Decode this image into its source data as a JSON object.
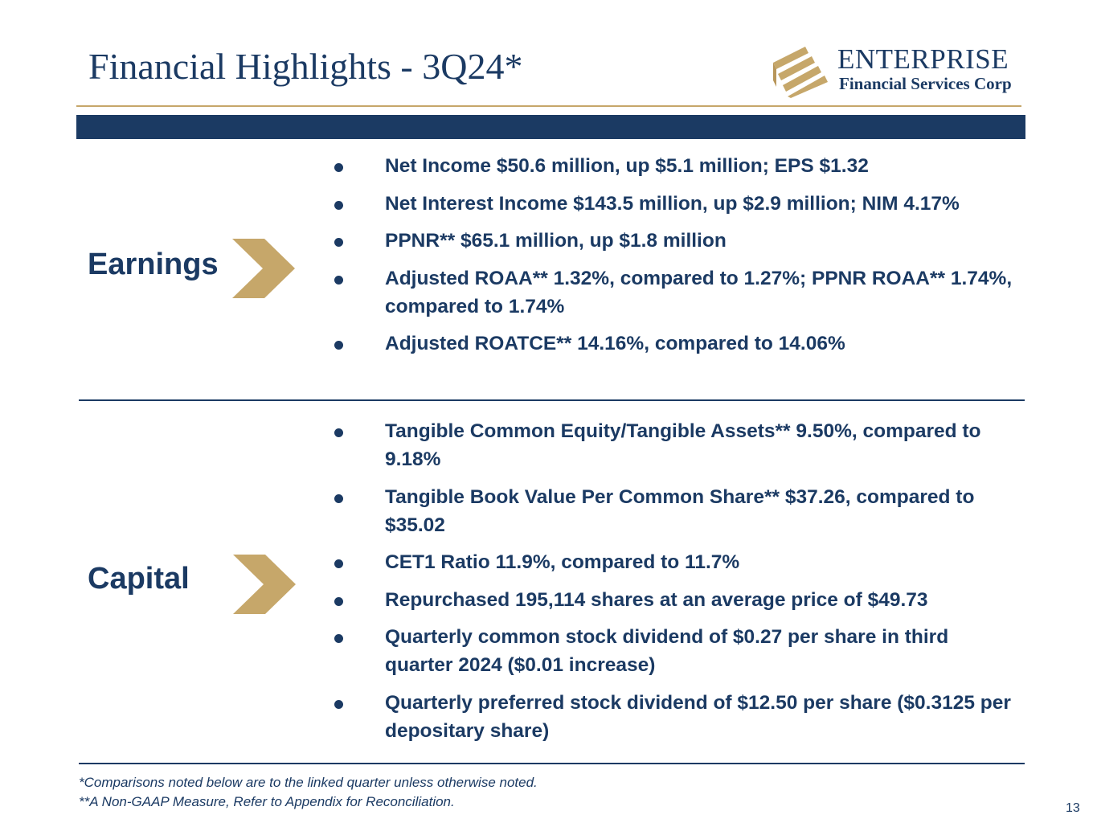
{
  "header": {
    "title": "Financial Highlights - 3Q24*"
  },
  "logo": {
    "name": "ENTERPRISE",
    "subtitle": "Financial Services Corp",
    "registered": "®"
  },
  "sections": {
    "earnings": {
      "label": "Earnings",
      "bullets": [
        "Net Income $50.6 million, up $5.1 million; EPS $1.32",
        "Net Interest Income $143.5 million, up $2.9 million; NIM 4.17%",
        "PPNR** $65.1 million, up $1.8 million",
        "Adjusted ROAA** 1.32%, compared to 1.27%; PPNR ROAA** 1.74%, compared to 1.74%",
        "Adjusted ROATCE** 14.16%, compared to 14.06%"
      ]
    },
    "capital": {
      "label": "Capital",
      "bullets": [
        "Tangible Common Equity/Tangible Assets** 9.50%, compared to 9.18%",
        "Tangible Book Value Per Common Share** $37.26, compared to $35.02",
        "CET1 Ratio 11.9%, compared to 11.7%",
        "Repurchased 195,114 shares at an average price of $49.73",
        "Quarterly common stock dividend of $0.27 per share in third quarter 2024 ($0.01 increase)",
        "Quarterly preferred stock dividend of $12.50 per share ($0.3125 per depositary share)"
      ]
    }
  },
  "footnotes": {
    "line1": "*Comparisons noted below are to the linked quarter unless otherwise noted.",
    "line2": "**A Non-GAAP Measure, Refer to Appendix for Reconciliation."
  },
  "page": {
    "number": "13"
  },
  "colors": {
    "navy": "#1b3a63",
    "gold": "#c6a76a"
  }
}
